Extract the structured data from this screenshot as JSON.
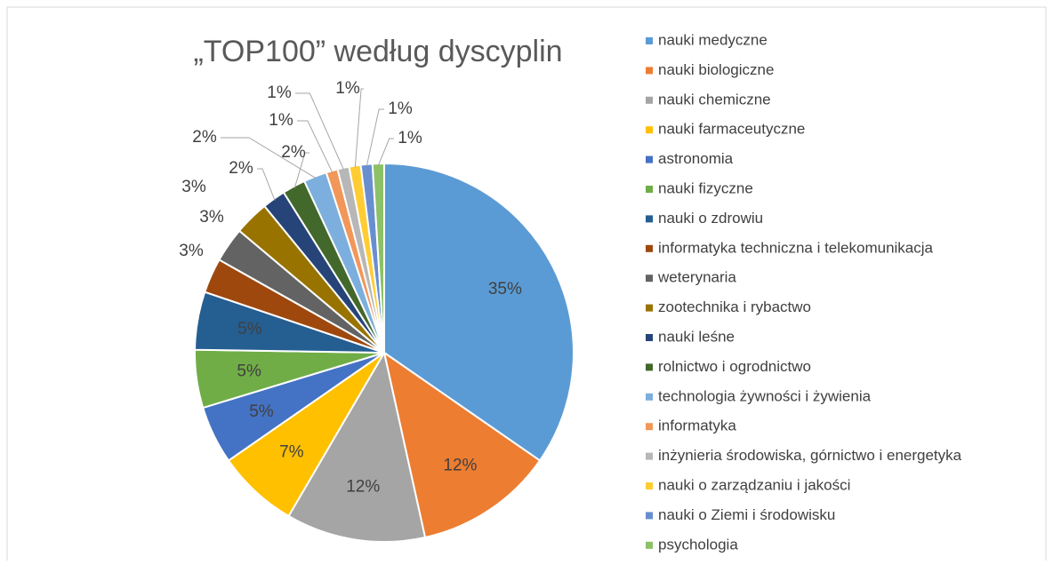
{
  "chart_data": {
    "type": "pie",
    "title": "„TOP100” według dyscyplin",
    "categories": [
      "nauki medyczne",
      "nauki biologiczne",
      "nauki chemiczne",
      "nauki farmaceutyczne",
      "astronomia",
      "nauki fizyczne",
      "nauki o zdrowiu",
      "informatyka techniczna i telekomunikacja",
      "weterynaria",
      "zootechnika i rybactwo",
      "nauki leśne",
      "rolnictwo i ogrodnictwo",
      "technologia żywności i żywienia",
      "informatyka",
      "inżynieria środowiska, górnictwo i energetyka",
      "nauki o zarządzaniu i jakości",
      "nauki o Ziemi i środowisku",
      "psychologia"
    ],
    "values": [
      35,
      12,
      12,
      7,
      5,
      5,
      5,
      3,
      3,
      3,
      2,
      2,
      2,
      1,
      1,
      1,
      1,
      1
    ],
    "value_labels": [
      "35%",
      "12%",
      "12%",
      "7%",
      "5%",
      "5%",
      "5%",
      "3%",
      "3%",
      "3%",
      "2%",
      "2%",
      "2%",
      "1%",
      "1%",
      "1%",
      "1%",
      "1%"
    ],
    "colors": [
      "#5b9bd5",
      "#ed7d31",
      "#a5a5a5",
      "#ffc000",
      "#4472c4",
      "#70ad47",
      "#255e91",
      "#9e480e",
      "#636363",
      "#997300",
      "#264478",
      "#43682b",
      "#7cafdd",
      "#f1975a",
      "#b7b7b7",
      "#ffcd33",
      "#698ed0",
      "#8cc168"
    ],
    "legend": "right"
  }
}
